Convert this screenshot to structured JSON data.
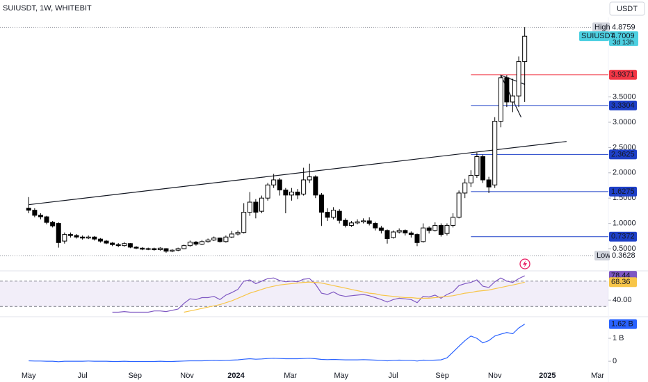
{
  "chart_data": [
    {
      "type": "candlestick",
      "title": "SUIUSDT, 1W, WHITEBIT",
      "currency": "USDT",
      "open": [
        1.3,
        1.26,
        1.16,
        1.13,
        1.02,
        1.0,
        0.65,
        0.78,
        0.76,
        0.73,
        0.71,
        0.73,
        0.69,
        0.65,
        0.61,
        0.58,
        0.56,
        0.6,
        0.53,
        0.51,
        0.49,
        0.5,
        0.48,
        0.5,
        0.45,
        0.47,
        0.5,
        0.56,
        0.63,
        0.59,
        0.64,
        0.67,
        0.71,
        0.64,
        0.73,
        0.79,
        0.82,
        1.22,
        1.42,
        1.24,
        1.5,
        1.76,
        1.86,
        1.66,
        1.56,
        1.62,
        1.58,
        1.86,
        1.92,
        1.56,
        1.22,
        1.12,
        1.24,
        1.06,
        0.96,
        1.01,
        1.03,
        1.05,
        1.0,
        0.91,
        0.86,
        0.72,
        0.83,
        0.86,
        0.81,
        0.78,
        0.64,
        0.91,
        0.86,
        0.96,
        0.8,
        0.96,
        1.12,
        1.6,
        1.8,
        1.95,
        2.32,
        1.86,
        1.76,
        3.02,
        3.88,
        3.4,
        3.52,
        4.2
      ],
      "high": [
        1.52,
        1.3,
        1.2,
        1.15,
        1.05,
        1.02,
        0.82,
        0.82,
        0.79,
        0.76,
        0.76,
        0.75,
        0.71,
        0.67,
        0.63,
        0.61,
        0.63,
        0.61,
        0.55,
        0.53,
        0.52,
        0.52,
        0.53,
        0.51,
        0.49,
        0.52,
        0.58,
        0.66,
        0.65,
        0.67,
        0.7,
        0.74,
        0.72,
        0.76,
        0.85,
        0.86,
        1.4,
        1.62,
        1.48,
        1.55,
        1.8,
        1.98,
        1.9,
        1.7,
        1.7,
        1.68,
        2.1,
        2.18,
        1.95,
        1.6,
        1.3,
        1.32,
        1.28,
        1.1,
        1.05,
        1.08,
        1.1,
        1.12,
        1.03,
        0.95,
        0.88,
        0.86,
        0.9,
        0.88,
        0.84,
        0.8,
        1.0,
        0.94,
        1.02,
        1.0,
        1.0,
        1.2,
        1.65,
        1.88,
        2.05,
        2.4,
        2.36,
        1.92,
        3.1,
        3.94,
        3.93,
        3.86,
        4.3,
        4.88
      ],
      "low": [
        1.2,
        1.12,
        1.08,
        0.98,
        0.92,
        0.52,
        0.6,
        0.72,
        0.7,
        0.68,
        0.69,
        0.66,
        0.62,
        0.59,
        0.55,
        0.53,
        0.54,
        0.51,
        0.49,
        0.47,
        0.47,
        0.46,
        0.46,
        0.42,
        0.43,
        0.45,
        0.49,
        0.54,
        0.56,
        0.57,
        0.62,
        0.65,
        0.62,
        0.62,
        0.71,
        0.76,
        0.8,
        1.15,
        1.1,
        1.2,
        1.45,
        1.7,
        1.55,
        1.2,
        1.45,
        1.48,
        1.55,
        1.8,
        1.5,
        0.95,
        1.05,
        1.08,
        1.0,
        0.92,
        0.93,
        0.98,
        1.0,
        0.96,
        0.86,
        0.8,
        0.6,
        0.7,
        0.8,
        0.76,
        0.72,
        0.55,
        0.62,
        0.8,
        0.84,
        0.74,
        0.76,
        0.92,
        1.1,
        1.5,
        1.72,
        1.9,
        1.8,
        1.6,
        1.7,
        2.9,
        3.3,
        3.2,
        3.3,
        3.4
      ],
      "close": [
        1.26,
        1.16,
        1.13,
        1.02,
        0.95,
        0.62,
        0.78,
        0.76,
        0.73,
        0.71,
        0.73,
        0.69,
        0.65,
        0.61,
        0.58,
        0.56,
        0.6,
        0.53,
        0.51,
        0.49,
        0.5,
        0.48,
        0.51,
        0.45,
        0.47,
        0.5,
        0.56,
        0.63,
        0.59,
        0.64,
        0.67,
        0.71,
        0.64,
        0.73,
        0.79,
        0.82,
        1.22,
        1.42,
        1.22,
        1.5,
        1.76,
        1.86,
        1.66,
        1.56,
        1.62,
        1.56,
        1.86,
        1.92,
        1.56,
        1.22,
        1.12,
        1.26,
        1.06,
        0.96,
        1.01,
        1.03,
        1.05,
        1.0,
        0.91,
        0.86,
        0.7,
        0.83,
        0.86,
        0.81,
        0.78,
        0.62,
        0.91,
        0.86,
        0.96,
        0.78,
        0.96,
        1.12,
        1.6,
        1.8,
        1.95,
        2.32,
        1.86,
        1.72,
        3.02,
        3.88,
        3.4,
        3.52,
        4.2,
        4.7
      ],
      "up_color": "#ffffff",
      "down_color": "#000000",
      "xlim": [
        -4.8,
        97
      ],
      "xticks": [
        {
          "value": 0,
          "label": "May"
        },
        {
          "value": 9,
          "label": "Jul"
        },
        {
          "value": 17.8,
          "label": "Sep"
        },
        {
          "value": 26.5,
          "label": "Nov"
        },
        {
          "value": 34.7,
          "label": "2024"
        },
        {
          "value": 43.8,
          "label": "Mar"
        },
        {
          "value": 52.3,
          "label": "May"
        },
        {
          "value": 61,
          "label": "Jul"
        },
        {
          "value": 69.2,
          "label": "Sep"
        },
        {
          "value": 78,
          "label": "Nov"
        },
        {
          "value": 86.8,
          "label": "2025"
        },
        {
          "value": 95.2,
          "label": "Mar"
        }
      ],
      "ylim": [
        0.363,
        5.005
      ],
      "yticks": [
        {
          "value": 0.5,
          "label": "0.5000"
        },
        {
          "value": 1,
          "label": "1.0000"
        },
        {
          "value": 1.5,
          "label": "1.5000"
        },
        {
          "value": 2,
          "label": "2.0000"
        },
        {
          "value": 2.5,
          "label": "2.5000"
        },
        {
          "value": 3,
          "label": "3.0000"
        },
        {
          "value": 3.5,
          "label": "3.5000"
        }
      ],
      "price_lines": [
        {
          "value": 3.9371,
          "color": "#f23645"
        },
        {
          "value": 3.3304,
          "color": "#1e40c8"
        },
        {
          "value": 2.3625,
          "color": "#1e40c8"
        },
        {
          "value": 1.6275,
          "color": "#1e40c8"
        },
        {
          "value": 0.7372,
          "color": "#1e40c8"
        }
      ],
      "highest": {
        "label": "High",
        "value": 4.8759
      },
      "lowest": {
        "label": "Low",
        "value": 0.3628
      },
      "last": {
        "name": "SUIUSDT",
        "value": 4.7009,
        "countdown": "3d 13h",
        "color": "#4dd0e1"
      },
      "trendlines": [
        {
          "x": [
            0,
            90
          ],
          "y": [
            1.37,
            2.62
          ]
        },
        {
          "x": [
            79,
            82.4
          ],
          "y": [
            3.93,
            3.1
          ]
        },
        {
          "x": [
            79,
            83
          ],
          "y": [
            3.93,
            3.75
          ]
        }
      ]
    },
    {
      "type": "line",
      "xlim": [
        -4.8,
        97
      ],
      "ylim": [
        15,
        84
      ],
      "yticks": [
        {
          "value": 40,
          "label": "40.00"
        }
      ],
      "band": [
        30,
        70
      ],
      "band_color": "#7e57c2",
      "series": [
        {
          "color": "#7e57c2",
          "values": [
            null,
            null,
            null,
            null,
            null,
            null,
            null,
            null,
            null,
            null,
            null,
            null,
            null,
            null,
            21,
            21,
            22,
            21,
            21,
            21,
            21,
            23,
            23,
            22,
            24,
            26,
            35,
            42,
            41,
            44,
            44,
            46,
            41,
            48,
            52,
            57,
            70,
            72,
            66,
            70,
            74,
            75,
            71,
            69,
            70,
            69,
            73,
            74,
            65,
            51,
            49,
            53,
            48,
            46,
            47,
            48,
            49,
            47,
            44,
            41,
            37,
            41,
            43,
            42,
            41,
            36,
            46,
            45,
            48,
            43,
            49,
            53,
            63,
            66,
            68,
            72,
            62,
            60,
            69,
            75,
            70,
            68,
            74,
            78.44
          ]
        },
        {
          "color": "#f7c548",
          "values": [
            null,
            null,
            null,
            null,
            null,
            null,
            null,
            null,
            null,
            null,
            null,
            null,
            null,
            null,
            null,
            null,
            null,
            null,
            null,
            null,
            null,
            null,
            null,
            null,
            null,
            null,
            21,
            23,
            25,
            27,
            29,
            31,
            33,
            36,
            39,
            43,
            47,
            51,
            54,
            57,
            60,
            62,
            64,
            65,
            66,
            67,
            68,
            68.5,
            68,
            67,
            65,
            63,
            61,
            59,
            57,
            55,
            53,
            51,
            50,
            48,
            47,
            46,
            45,
            44,
            44,
            43,
            43,
            43,
            44,
            45,
            46,
            47,
            49,
            51,
            52,
            54,
            55,
            56,
            58,
            60,
            62,
            64,
            66,
            68.36
          ]
        }
      ]
    },
    {
      "type": "line",
      "xlim": [
        -4.8,
        97
      ],
      "ylim": [
        -0.45,
        1.88
      ],
      "yticks": [
        0,
        {
          "value": 1,
          "label": "1 B"
        }
      ],
      "series": [
        {
          "color": "#2962ff",
          "value_label": "1.62 B",
          "values": [
            0.02,
            0.01,
            0.01,
            0.0,
            0.0,
            -0.02,
            0.0,
            0.0,
            0.0,
            0.0,
            0.01,
            0.0,
            0.0,
            0.0,
            -0.01,
            -0.01,
            0.0,
            -0.01,
            -0.01,
            -0.01,
            -0.01,
            -0.01,
            0.0,
            -0.01,
            -0.01,
            0.0,
            0.01,
            0.02,
            0.02,
            0.02,
            0.03,
            0.04,
            0.03,
            0.04,
            0.05,
            0.06,
            0.09,
            0.11,
            0.09,
            0.1,
            0.12,
            0.13,
            0.12,
            0.11,
            0.11,
            0.11,
            0.12,
            0.13,
            0.11,
            0.08,
            0.07,
            0.08,
            0.07,
            0.06,
            0.06,
            0.06,
            0.07,
            0.06,
            0.05,
            0.04,
            0.02,
            0.04,
            0.05,
            0.04,
            0.04,
            0.01,
            0.05,
            0.04,
            0.05,
            0.06,
            0.15,
            0.4,
            0.65,
            0.9,
            1.1,
            1.0,
            0.8,
            0.9,
            1.1,
            1.18,
            1.25,
            1.2,
            1.45,
            1.62
          ]
        }
      ]
    }
  ]
}
